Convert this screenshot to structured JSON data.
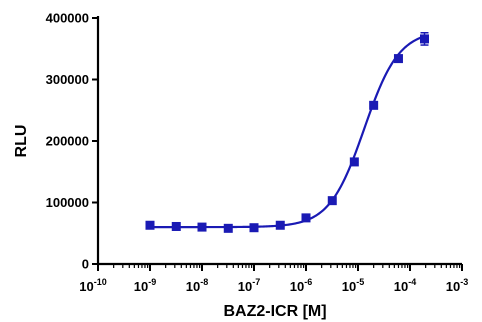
{
  "chart_data": {
    "type": "scatter",
    "xlabel": "BAZ2-ICR [M]",
    "ylabel": "RLU",
    "x_scale": "log",
    "xlim": [
      1e-10,
      0.001
    ],
    "ylim": [
      0,
      400000
    ],
    "yticks": [
      0,
      100000,
      200000,
      300000,
      400000
    ],
    "ytick_labels": [
      "0",
      "100000",
      "200000",
      "300000",
      "400000"
    ],
    "xticks": [
      {
        "base": "10",
        "exp": "-10",
        "value": 1e-10
      },
      {
        "base": "10",
        "exp": "-9",
        "value": 1e-09
      },
      {
        "base": "10",
        "exp": "-8",
        "value": 1e-08
      },
      {
        "base": "10",
        "exp": "-7",
        "value": 1e-07
      },
      {
        "base": "10",
        "exp": "-6",
        "value": 1e-06
      },
      {
        "base": "10",
        "exp": "-5",
        "value": 1e-05
      },
      {
        "base": "10",
        "exp": "-4",
        "value": 0.0001
      },
      {
        "base": "10",
        "exp": "-3",
        "value": 0.001
      }
    ],
    "grid": false,
    "color": "#1a1ab4",
    "marker": "square",
    "fit_curve": "sigmoidal dose-response",
    "points": [
      {
        "x": 1e-09,
        "y": 63000,
        "err": 3000
      },
      {
        "x": 3.2e-09,
        "y": 61000,
        "err": 2500
      },
      {
        "x": 1e-08,
        "y": 60000,
        "err": 2500
      },
      {
        "x": 3.2e-08,
        "y": 58000,
        "err": 2500
      },
      {
        "x": 1e-07,
        "y": 59000,
        "err": 2500
      },
      {
        "x": 3.2e-07,
        "y": 63000,
        "err": 2500
      },
      {
        "x": 1e-06,
        "y": 75000,
        "err": 3000
      },
      {
        "x": 3.2e-06,
        "y": 103000,
        "err": 3000
      },
      {
        "x": 8.5e-06,
        "y": 166000,
        "err": 4000
      },
      {
        "x": 2e-05,
        "y": 258000,
        "err": 4000
      },
      {
        "x": 6e-05,
        "y": 334000,
        "err": 4000
      },
      {
        "x": 0.00019,
        "y": 366000,
        "err": 10000
      }
    ],
    "fit": {
      "bottom": 60000,
      "top": 380000,
      "log_ec50": -4.88,
      "hill": 1.3
    }
  }
}
